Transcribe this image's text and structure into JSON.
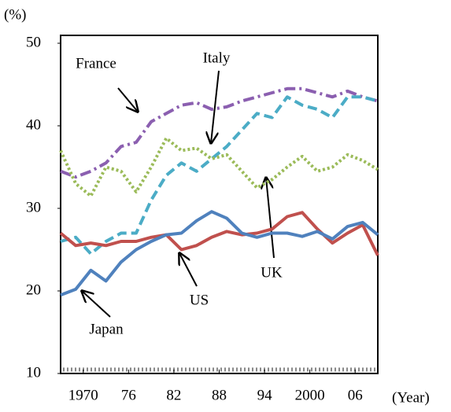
{
  "chart_data": {
    "type": "line",
    "y_unit": "(%)",
    "x_unit": "(Year)",
    "x": [
      1967,
      1969,
      1971,
      1973,
      1975,
      1977,
      1979,
      1981,
      1983,
      1985,
      1987,
      1989,
      1991,
      1993,
      1995,
      1997,
      1999,
      2001,
      2003,
      2005,
      2007,
      2009
    ],
    "xlim": [
      1967,
      2009
    ],
    "xticks": [
      1970,
      {
        "value": 1976,
        "label": "76"
      },
      {
        "value": 1982,
        "label": "82"
      },
      {
        "value": 1988,
        "label": "88"
      },
      {
        "value": 1994,
        "label": "94"
      },
      2000,
      {
        "value": 2006,
        "label": "06"
      }
    ],
    "ylim": [
      10,
      50
    ],
    "yticks": [
      10,
      20,
      30,
      40,
      50
    ],
    "grid": false,
    "series": [
      {
        "name": "France",
        "color": "#8b5fb0",
        "dash": "14 5 3 5",
        "values": [
          34.5,
          33.8,
          34.5,
          35.5,
          37.5,
          38,
          40.5,
          41.5,
          42.5,
          42.8,
          42,
          42.3,
          43,
          43.5,
          44,
          44.5,
          44.5,
          44,
          43.5,
          44.2,
          43.5,
          43
        ]
      },
      {
        "name": "Italy",
        "color": "#4bacc6",
        "dash": "12 6",
        "values": [
          26,
          26.5,
          24.5,
          26,
          27,
          27,
          31,
          34,
          35.5,
          34.5,
          36,
          37.5,
          39.5,
          41.5,
          41,
          43.5,
          42.5,
          42,
          41,
          43.5,
          43.5,
          43
        ]
      },
      {
        "name": "UK",
        "color": "#9bbb59",
        "dash": "3 3",
        "values": [
          37,
          33,
          31.5,
          35,
          34.5,
          32,
          35,
          38.5,
          37,
          37.3,
          36,
          36.5,
          34.5,
          32.5,
          33.5,
          35,
          36.3,
          34.5,
          35,
          36.5,
          35.8,
          34.7
        ]
      },
      {
        "name": "US",
        "color": "#c0504d",
        "dash": "",
        "values": [
          27,
          25.5,
          25.8,
          25.5,
          26,
          26,
          26.5,
          26.8,
          25,
          25.5,
          26.5,
          27.2,
          26.8,
          27,
          27.5,
          29,
          29.5,
          27.5,
          25.8,
          27,
          28,
          24.3
        ]
      },
      {
        "name": "Japan",
        "color": "#4f81bd",
        "dash": "",
        "values": [
          19.5,
          20.2,
          22.5,
          21.2,
          23.5,
          25,
          26,
          26.8,
          27,
          28.5,
          29.6,
          28.8,
          27,
          26.5,
          27,
          27,
          26.6,
          27.2,
          26.3,
          27.8,
          28.3,
          26.8
        ]
      }
    ]
  }
}
